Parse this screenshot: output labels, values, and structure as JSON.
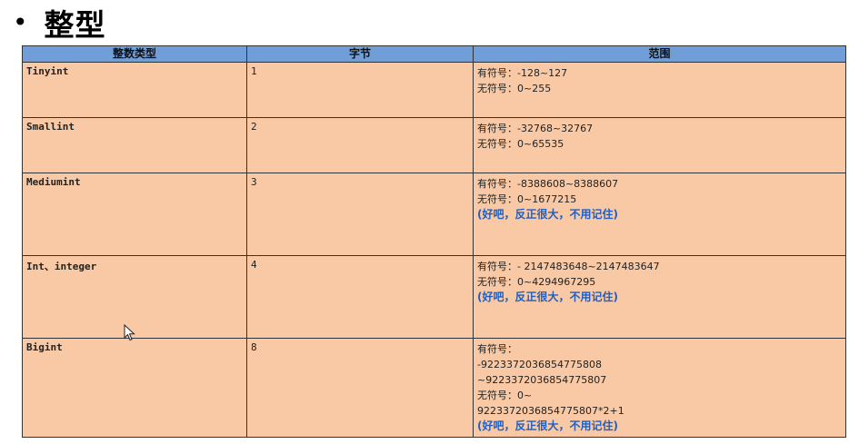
{
  "heading": {
    "bullet": "•",
    "title": "整型"
  },
  "table": {
    "headers": [
      "整数类型",
      "字节",
      "范围"
    ],
    "rows": [
      {
        "type": "Tinyint",
        "bytes": "1",
        "range": [
          "有符号：-128~127",
          "无符号：0~255"
        ]
      },
      {
        "type": "Smallint",
        "bytes": "2",
        "range": [
          "有符号：-32768~32767",
          "无符号：0~65535"
        ]
      },
      {
        "type": "Mediumint",
        "bytes": "3",
        "range": [
          "有符号：-8388608~8388607",
          "无符号：0~1677215"
        ],
        "note": "(好吧，反正很大，不用记住)"
      },
      {
        "type": "Int、integer",
        "bytes": "4",
        "range": [
          "有符号：- 2147483648~2147483647",
          "无符号：0~4294967295"
        ],
        "note": "(好吧，反正很大，不用记住)"
      },
      {
        "type": "Bigint",
        "bytes": "8",
        "range": [
          "有符号：",
          "-9223372036854775808",
          "~9223372036854775807",
          "无符号：0~",
          "9223372036854775807*2+1"
        ],
        "note": "(好吧，反正很大，不用记住)"
      }
    ]
  },
  "colors": {
    "header_bg": "#6f9ed8",
    "cell_bg": "#f8c9a4",
    "type_text": "#ef1a1a",
    "note_text": "#1f5fc4"
  },
  "icons": {
    "cursor": "mouse-pointer-icon"
  }
}
